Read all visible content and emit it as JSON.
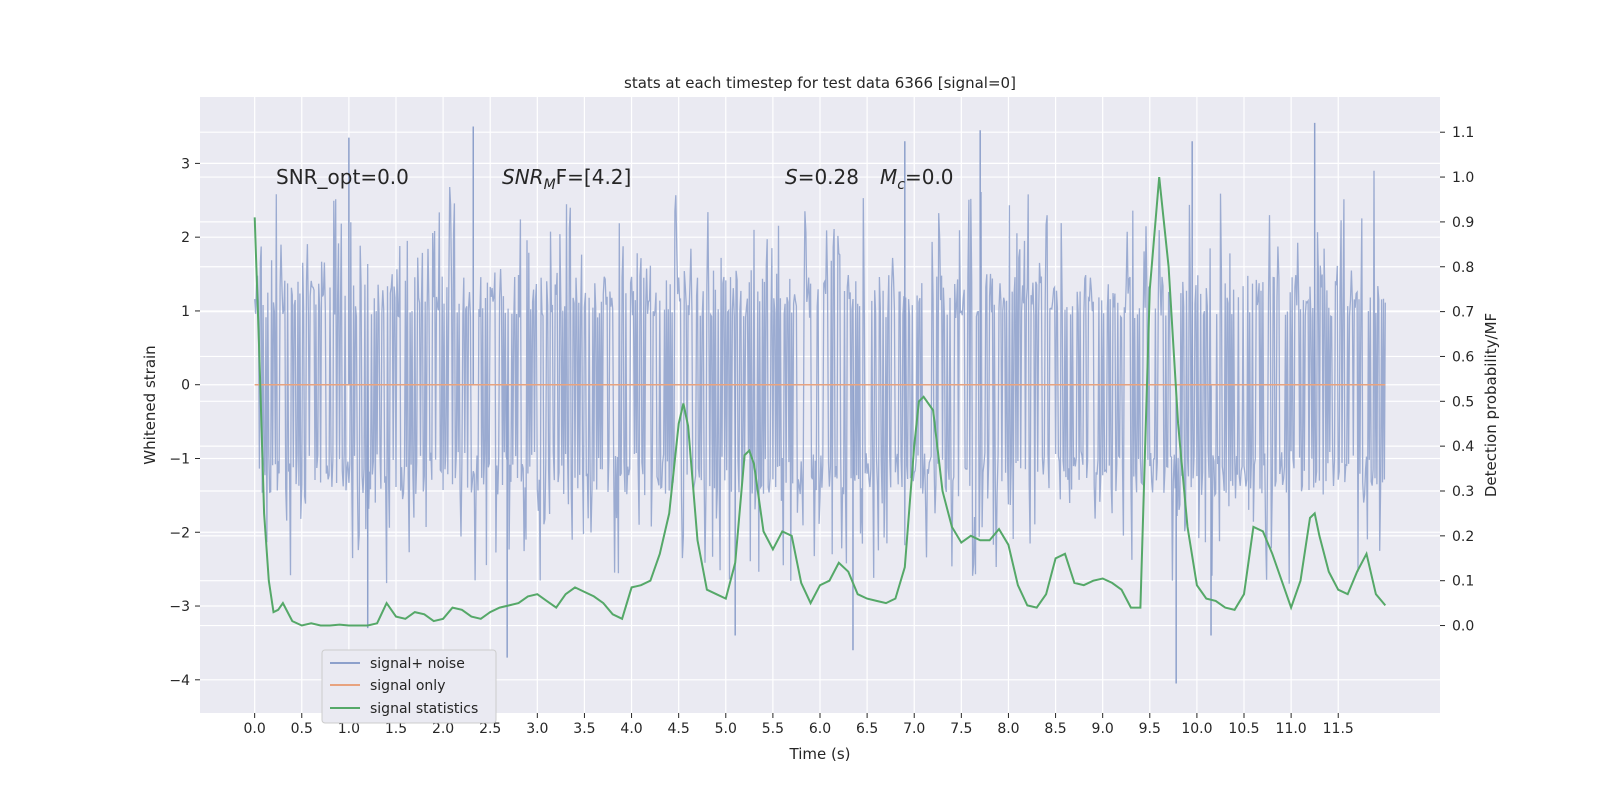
{
  "chart_data": {
    "type": "line",
    "title": "stats at each timestep for test data 6366 [signal=0]",
    "xlabel": "Time (s)",
    "ylabel": "Whitened strain",
    "y2label": "Detection probability/MF",
    "xlim": [
      -0.58,
      12.58
    ],
    "ylim": [
      -4.45,
      3.9
    ],
    "y2lim": [
      -0.195,
      1.1785
    ],
    "x_ticks": [
      0.0,
      0.5,
      1.0,
      1.5,
      2.0,
      2.5,
      3.0,
      3.5,
      4.0,
      4.5,
      5.0,
      5.5,
      6.0,
      6.5,
      7.0,
      7.5,
      8.0,
      8.5,
      9.0,
      9.5,
      10.0,
      10.5,
      11.0,
      11.5
    ],
    "x_tick_labels": [
      "0.0",
      "0.5",
      "1.0",
      "1.5",
      "2.0",
      "2.5",
      "3.0",
      "3.5",
      "4.0",
      "4.5",
      "5.0",
      "5.5",
      "6.0",
      "6.5",
      "7.0",
      "7.5",
      "8.0",
      "8.5",
      "9.0",
      "9.5",
      "10.0",
      "10.5",
      "11.0",
      "11.5"
    ],
    "y_ticks": [
      -4,
      -3,
      -2,
      -1,
      0,
      1,
      2,
      3
    ],
    "y_tick_labels": [
      "−4",
      "−3",
      "−2",
      "−1",
      "0",
      "1",
      "2",
      "3"
    ],
    "y2_ticks": [
      0.0,
      0.1,
      0.2,
      0.3,
      0.4,
      0.5,
      0.6,
      0.7,
      0.8,
      0.9,
      1.0,
      1.1
    ],
    "y2_tick_labels": [
      "0.0",
      "0.1",
      "0.2",
      "0.3",
      "0.4",
      "0.5",
      "0.6",
      "0.7",
      "0.8",
      "0.9",
      "1.0",
      "1.1"
    ],
    "grid": true,
    "legend": {
      "placement": "lower-left",
      "entries": [
        {
          "label": "signal+ noise",
          "color": "#8da0cb"
        },
        {
          "label": "signal only",
          "color": "#e8a37f"
        },
        {
          "label": "signal statistics",
          "color": "#55a868"
        }
      ]
    },
    "annotations": [
      {
        "text": "SNR_opt=0.0"
      },
      {
        "main": "SNR",
        "sub": "M",
        "rest": "F=[4.2]"
      },
      {
        "main": "S",
        "rest": "=0.28"
      },
      {
        "main": "M",
        "sub": "c",
        "rest": "=0.0"
      }
    ],
    "series": [
      {
        "name": "signal+ noise",
        "axis": "left",
        "color": "#8da0cb",
        "x_range": [
          0.0,
          12.0
        ],
        "sample_rate_hz": 100,
        "note_values": "approx. 1200 samples of whitened strain noise; typical range −2.0 to 2.0, occasional spikes",
        "spikes": [
          {
            "x": 1.0,
            "y": 3.35
          },
          {
            "x": 2.32,
            "y": 3.5
          },
          {
            "x": 7.7,
            "y": 3.45
          },
          {
            "x": 11.25,
            "y": 3.55
          },
          {
            "x": 9.78,
            "y": -4.05
          },
          {
            "x": 2.68,
            "y": -3.7
          },
          {
            "x": 6.35,
            "y": -3.6
          },
          {
            "x": 5.1,
            "y": -3.4
          },
          {
            "x": 10.15,
            "y": -3.4
          },
          {
            "x": 1.2,
            "y": -3.3
          },
          {
            "x": 9.95,
            "y": 3.3
          },
          {
            "x": 6.9,
            "y": 3.3
          }
        ]
      },
      {
        "name": "signal only",
        "axis": "left",
        "color": "#e8a37f",
        "x": [
          0.0,
          12.0
        ],
        "y": [
          0.0,
          0.0
        ]
      },
      {
        "name": "signal statistics",
        "axis": "right",
        "color": "#55a868",
        "x": [
          0.0,
          0.05,
          0.1,
          0.15,
          0.2,
          0.25,
          0.3,
          0.35,
          0.4,
          0.5,
          0.6,
          0.7,
          0.8,
          0.9,
          1.0,
          1.1,
          1.2,
          1.3,
          1.4,
          1.5,
          1.6,
          1.7,
          1.8,
          1.9,
          2.0,
          2.1,
          2.2,
          2.3,
          2.4,
          2.5,
          2.6,
          2.7,
          2.8,
          2.9,
          3.0,
          3.1,
          3.2,
          3.3,
          3.4,
          3.5,
          3.6,
          3.7,
          3.8,
          3.9,
          4.0,
          4.1,
          4.2,
          4.3,
          4.4,
          4.5,
          4.55,
          4.6,
          4.7,
          4.8,
          4.9,
          5.0,
          5.1,
          5.2,
          5.25,
          5.3,
          5.4,
          5.5,
          5.6,
          5.7,
          5.8,
          5.9,
          6.0,
          6.1,
          6.2,
          6.3,
          6.4,
          6.5,
          6.6,
          6.7,
          6.8,
          6.9,
          7.0,
          7.05,
          7.1,
          7.2,
          7.3,
          7.4,
          7.5,
          7.6,
          7.7,
          7.8,
          7.9,
          8.0,
          8.1,
          8.2,
          8.3,
          8.4,
          8.5,
          8.6,
          8.7,
          8.8,
          8.9,
          9.0,
          9.1,
          9.2,
          9.3,
          9.4,
          9.5,
          9.6,
          9.7,
          9.8,
          9.9,
          10.0,
          10.1,
          10.2,
          10.3,
          10.4,
          10.5,
          10.6,
          10.7,
          10.8,
          10.9,
          11.0,
          11.1,
          11.2,
          11.25,
          11.3,
          11.4,
          11.5,
          11.6,
          11.7,
          11.8,
          11.9,
          12.0
        ],
        "y": [
          0.91,
          0.6,
          0.25,
          0.1,
          0.03,
          0.035,
          0.05,
          0.03,
          0.01,
          0.0,
          0.005,
          0.0,
          0.0,
          0.002,
          0.0,
          0.0,
          0.0,
          0.005,
          0.05,
          0.02,
          0.015,
          0.03,
          0.025,
          0.01,
          0.015,
          0.04,
          0.035,
          0.02,
          0.015,
          0.03,
          0.04,
          0.045,
          0.05,
          0.065,
          0.07,
          0.055,
          0.04,
          0.07,
          0.085,
          0.075,
          0.065,
          0.05,
          0.025,
          0.015,
          0.085,
          0.09,
          0.1,
          0.16,
          0.25,
          0.45,
          0.495,
          0.445,
          0.19,
          0.08,
          0.07,
          0.06,
          0.14,
          0.38,
          0.39,
          0.36,
          0.21,
          0.17,
          0.21,
          0.2,
          0.095,
          0.05,
          0.09,
          0.1,
          0.14,
          0.12,
          0.07,
          0.06,
          0.055,
          0.05,
          0.06,
          0.13,
          0.4,
          0.5,
          0.51,
          0.48,
          0.3,
          0.22,
          0.185,
          0.2,
          0.19,
          0.19,
          0.215,
          0.18,
          0.09,
          0.045,
          0.04,
          0.07,
          0.15,
          0.16,
          0.095,
          0.09,
          0.1,
          0.105,
          0.095,
          0.08,
          0.04,
          0.04,
          0.75,
          1.0,
          0.8,
          0.45,
          0.22,
          0.09,
          0.06,
          0.055,
          0.04,
          0.035,
          0.07,
          0.22,
          0.21,
          0.16,
          0.1,
          0.04,
          0.1,
          0.24,
          0.25,
          0.2,
          0.12,
          0.08,
          0.07,
          0.12,
          0.16,
          0.07,
          0.045
        ]
      }
    ]
  }
}
